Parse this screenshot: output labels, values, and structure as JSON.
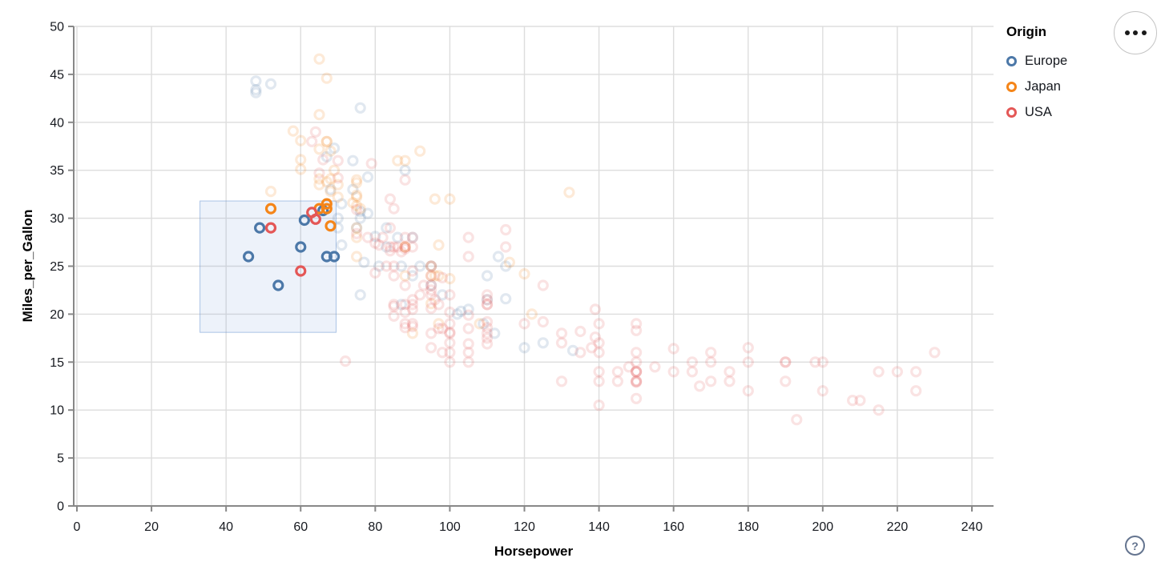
{
  "chart_data": {
    "type": "scatter",
    "title": "",
    "xlabel": "Horsepower",
    "ylabel": "Miles_per_Gallon",
    "xlim": [
      0,
      240
    ],
    "ylim": [
      0,
      50
    ],
    "x_ticks": [
      0,
      20,
      40,
      60,
      80,
      100,
      120,
      140,
      160,
      180,
      200,
      220,
      240
    ],
    "y_ticks": [
      0,
      5,
      10,
      15,
      20,
      25,
      30,
      35,
      40,
      45,
      50
    ],
    "grid": true,
    "legend": {
      "title": "Origin",
      "position": "top-right",
      "entries": [
        {
          "label": "Europe",
          "color": "#4c78a8"
        },
        {
          "label": "Japan",
          "color": "#f58518"
        },
        {
          "label": "USA",
          "color": "#e45756"
        }
      ]
    },
    "brush": {
      "x": [
        33,
        69.5
      ],
      "y": [
        18.1,
        31.8
      ]
    },
    "point_style": {
      "shape": "ring",
      "radius": 5.5,
      "stroke_width": 3.2,
      "selected_opacity": 1.0,
      "unselected_opacity": 0.17
    },
    "series": [
      {
        "name": "Europe",
        "color": "#4c78a8",
        "points": [
          [
            46,
            26
          ],
          [
            49,
            29
          ],
          [
            54,
            23
          ],
          [
            60,
            27
          ],
          [
            61,
            29.8
          ],
          [
            66,
            30.8
          ],
          [
            67,
            26
          ],
          [
            69,
            26
          ],
          [
            48,
            43.4
          ],
          [
            48,
            44.3
          ],
          [
            48,
            43.1
          ],
          [
            52,
            44
          ],
          [
            76,
            41.5
          ],
          [
            71,
            31.5
          ],
          [
            78,
            34.3
          ],
          [
            74,
            36
          ],
          [
            74,
            33
          ],
          [
            88,
            35
          ],
          [
            69,
            37.3
          ],
          [
            67,
            36.4
          ],
          [
            78,
            30.5
          ],
          [
            76,
            30.7
          ],
          [
            80,
            28.1
          ],
          [
            70,
            30
          ],
          [
            70,
            29
          ],
          [
            75,
            29
          ],
          [
            76,
            30
          ],
          [
            83,
            29
          ],
          [
            83,
            27
          ],
          [
            86,
            28
          ],
          [
            90,
            28
          ],
          [
            92,
            25
          ],
          [
            87,
            25
          ],
          [
            87,
            21
          ],
          [
            90,
            24
          ],
          [
            95,
            25
          ],
          [
            95,
            23
          ],
          [
            98,
            22
          ],
          [
            102,
            20
          ],
          [
            103,
            20.3
          ],
          [
            105,
            20.5
          ],
          [
            109,
            19
          ],
          [
            110,
            21.5
          ],
          [
            110,
            24
          ],
          [
            112,
            18
          ],
          [
            113,
            26
          ],
          [
            115,
            25
          ],
          [
            115,
            21.6
          ],
          [
            120,
            16.5
          ],
          [
            125,
            17
          ],
          [
            133,
            16.2
          ],
          [
            76,
            22
          ],
          [
            71,
            27.2
          ],
          [
            81,
            25
          ],
          [
            77,
            25.4
          ],
          [
            68,
            33
          ]
        ]
      },
      {
        "name": "Japan",
        "color": "#f58518",
        "points": [
          [
            52,
            31
          ],
          [
            65,
            31
          ],
          [
            67,
            31.5
          ],
          [
            67,
            31
          ],
          [
            68,
            29.2
          ],
          [
            65,
            46.6
          ],
          [
            67,
            44.6
          ],
          [
            52,
            32.8
          ],
          [
            58,
            39.1
          ],
          [
            60,
            35.1
          ],
          [
            60,
            36.1
          ],
          [
            60,
            38.1
          ],
          [
            65,
            40.8
          ],
          [
            65,
            37.2
          ],
          [
            65,
            34.1
          ],
          [
            65,
            33.5
          ],
          [
            67,
            38
          ],
          [
            67,
            38
          ],
          [
            67,
            33.8
          ],
          [
            68,
            37
          ],
          [
            68,
            34.1
          ],
          [
            68,
            32.8
          ],
          [
            69,
            35
          ],
          [
            70,
            33.5
          ],
          [
            70,
            32.2
          ],
          [
            74,
            31.6
          ],
          [
            75,
            33.7
          ],
          [
            75,
            34
          ],
          [
            75,
            32.2
          ],
          [
            75,
            32.4
          ],
          [
            75,
            31.3
          ],
          [
            75,
            29
          ],
          [
            75,
            28
          ],
          [
            75,
            26
          ],
          [
            76,
            31
          ],
          [
            86,
            36
          ],
          [
            88,
            36
          ],
          [
            88,
            27
          ],
          [
            88,
            27
          ],
          [
            88,
            24
          ],
          [
            90,
            18
          ],
          [
            92,
            37
          ],
          [
            95,
            24
          ],
          [
            95,
            25
          ],
          [
            95,
            21.1
          ],
          [
            96,
            24
          ],
          [
            96,
            32
          ],
          [
            97,
            27.2
          ],
          [
            97,
            24
          ],
          [
            97,
            19
          ],
          [
            100,
            23.7
          ],
          [
            100,
            32
          ],
          [
            108,
            19
          ],
          [
            116,
            25.4
          ],
          [
            120,
            24.2
          ],
          [
            122,
            20
          ],
          [
            132,
            32.7
          ]
        ]
      },
      {
        "name": "USA",
        "color": "#e45756",
        "points": [
          [
            52,
            29
          ],
          [
            60,
            24.5
          ],
          [
            63,
            30.6
          ],
          [
            64,
            29.9
          ],
          [
            63,
            38
          ],
          [
            64,
            39
          ],
          [
            65,
            34.7
          ],
          [
            66,
            36.1
          ],
          [
            70,
            34.2
          ],
          [
            70,
            36
          ],
          [
            72,
            15.1
          ],
          [
            75,
            30.9
          ],
          [
            75,
            28.4
          ],
          [
            79,
            35.7
          ],
          [
            80,
            27.4
          ],
          [
            80,
            24.3
          ],
          [
            81,
            27.2
          ],
          [
            82,
            28
          ],
          [
            83,
            25
          ],
          [
            84,
            29
          ],
          [
            84,
            27
          ],
          [
            84,
            32
          ],
          [
            84,
            26.6
          ],
          [
            78,
            28
          ],
          [
            85,
            31
          ],
          [
            85,
            27
          ],
          [
            85,
            25
          ],
          [
            85,
            24
          ],
          [
            85,
            21
          ],
          [
            85,
            20.8
          ],
          [
            85,
            19.8
          ],
          [
            86,
            27
          ],
          [
            87,
            26.5
          ],
          [
            88,
            34
          ],
          [
            88,
            28
          ],
          [
            88,
            27
          ],
          [
            88,
            26.8
          ],
          [
            88,
            23
          ],
          [
            88,
            21
          ],
          [
            88,
            20.2
          ],
          [
            88,
            19
          ],
          [
            88,
            18.6
          ],
          [
            90,
            28
          ],
          [
            90,
            27
          ],
          [
            90,
            24.5
          ],
          [
            90,
            21.5
          ],
          [
            90,
            21
          ],
          [
            90,
            20.5
          ],
          [
            90,
            19
          ],
          [
            90,
            18.7
          ],
          [
            92,
            22
          ],
          [
            93,
            23
          ],
          [
            95,
            25
          ],
          [
            95,
            24
          ],
          [
            95,
            23
          ],
          [
            95,
            22.5
          ],
          [
            95,
            22
          ],
          [
            95,
            20.6
          ],
          [
            95,
            18
          ],
          [
            95,
            16.5
          ],
          [
            96,
            21.5
          ],
          [
            97,
            21
          ],
          [
            97,
            18.5
          ],
          [
            98,
            23.8
          ],
          [
            98,
            18.5
          ],
          [
            98,
            16
          ],
          [
            100,
            22
          ],
          [
            100,
            20.2
          ],
          [
            100,
            19
          ],
          [
            100,
            18.1
          ],
          [
            100,
            18
          ],
          [
            100,
            17
          ],
          [
            100,
            16
          ],
          [
            100,
            15
          ],
          [
            105,
            28
          ],
          [
            105,
            26
          ],
          [
            105,
            19.9
          ],
          [
            105,
            18.5
          ],
          [
            105,
            16.9
          ],
          [
            105,
            15
          ],
          [
            105,
            16
          ],
          [
            110,
            22
          ],
          [
            110,
            21.5
          ],
          [
            110,
            21
          ],
          [
            110,
            21
          ],
          [
            110,
            19.2
          ],
          [
            110,
            18.6
          ],
          [
            110,
            18
          ],
          [
            110,
            17.5
          ],
          [
            110,
            16.9
          ],
          [
            115,
            28.8
          ],
          [
            115,
            27
          ],
          [
            120,
            19
          ],
          [
            125,
            23
          ],
          [
            125,
            19.2
          ],
          [
            130,
            18
          ],
          [
            130,
            17
          ],
          [
            130,
            13
          ],
          [
            135,
            18.2
          ],
          [
            135,
            16
          ],
          [
            138,
            16.5
          ],
          [
            139,
            20.5
          ],
          [
            139,
            17.6
          ],
          [
            140,
            19
          ],
          [
            140,
            17
          ],
          [
            140,
            16
          ],
          [
            140,
            14
          ],
          [
            140,
            13
          ],
          [
            140,
            10.5
          ],
          [
            145,
            13
          ],
          [
            145,
            14
          ],
          [
            148,
            14.5
          ],
          [
            150,
            19
          ],
          [
            150,
            18.3
          ],
          [
            150,
            16
          ],
          [
            150,
            15
          ],
          [
            150,
            14
          ],
          [
            150,
            14
          ],
          [
            150,
            14
          ],
          [
            150,
            13
          ],
          [
            150,
            13
          ],
          [
            150,
            12.9
          ],
          [
            150,
            11.2
          ],
          [
            155,
            14.5
          ],
          [
            160,
            16.4
          ],
          [
            160,
            14
          ],
          [
            165,
            15
          ],
          [
            165,
            14
          ],
          [
            167,
            12.5
          ],
          [
            170,
            15
          ],
          [
            170,
            13
          ],
          [
            170,
            16
          ],
          [
            175,
            14
          ],
          [
            175,
            13
          ],
          [
            180,
            16.5
          ],
          [
            180,
            15
          ],
          [
            180,
            12
          ],
          [
            190,
            15
          ],
          [
            190,
            15
          ],
          [
            190,
            13
          ],
          [
            193,
            9
          ],
          [
            198,
            15
          ],
          [
            200,
            15
          ],
          [
            200,
            12
          ],
          [
            208,
            11
          ],
          [
            210,
            11
          ],
          [
            215,
            14
          ],
          [
            215,
            10
          ],
          [
            220,
            14
          ],
          [
            225,
            14
          ],
          [
            225,
            12
          ],
          [
            230,
            16
          ]
        ]
      }
    ]
  },
  "controls": {
    "menu_icon": "ellipsis-icon",
    "help_label": "?"
  },
  "colors": {
    "axis": "#888888",
    "grid": "#dddddd",
    "label": "#16191f",
    "brush_fill": "rgba(109,152,211,0.12)",
    "brush_stroke": "rgba(109,152,211,0.55)"
  }
}
